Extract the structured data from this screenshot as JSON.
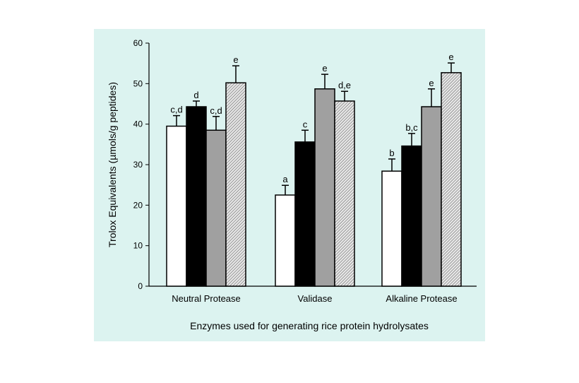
{
  "chart_data": {
    "type": "bar",
    "title": "",
    "xlabel": "Enzymes used for generating rice protein hydrolysates",
    "ylabel": "Trolox Equivalents (µmols/g peptides)",
    "ylim": [
      0,
      60
    ],
    "yticks": [
      0,
      10,
      20,
      30,
      40,
      50,
      60
    ],
    "categories": [
      "Neutral Protease",
      "Validase",
      "Alkaline Protease"
    ],
    "legend": "none",
    "grid": false,
    "series": [
      {
        "fill": "#ffffff",
        "values": [
          39.5,
          22.5,
          28.4
        ],
        "errors": [
          2.6,
          2.4,
          3.0
        ],
        "labels": [
          "c,d",
          "a",
          "b"
        ]
      },
      {
        "fill": "#000000",
        "values": [
          44.3,
          35.6,
          34.6
        ],
        "errors": [
          1.4,
          2.9,
          3.1
        ],
        "labels": [
          "d",
          "c",
          "b,c"
        ]
      },
      {
        "fill": "#a0a0a0",
        "values": [
          38.5,
          48.7,
          44.3
        ],
        "errors": [
          3.4,
          3.6,
          4.4
        ],
        "labels": [
          "c,d",
          "e",
          "e"
        ]
      },
      {
        "fill": "hatched",
        "values": [
          50.2,
          45.7,
          52.7
        ],
        "errors": [
          4.2,
          2.4,
          2.4
        ],
        "labels": [
          "e",
          "d,e",
          "e"
        ]
      }
    ]
  }
}
